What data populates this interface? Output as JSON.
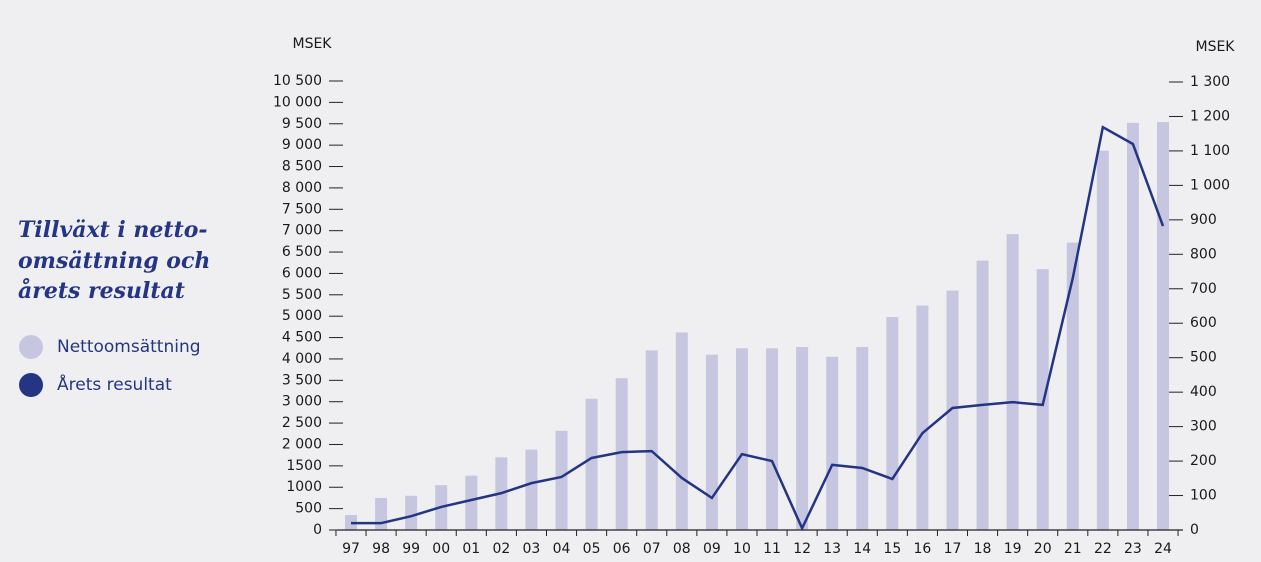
{
  "chart_data": {
    "type": "bar-line",
    "title": [
      "Tillväxt i netto-",
      "omsättning och",
      "årets resultat"
    ],
    "y_label": "MSEK",
    "y2_label": "MSEK",
    "categories": [
      "97",
      "98",
      "99",
      "00",
      "01",
      "02",
      "03",
      "04",
      "05",
      "06",
      "07",
      "08",
      "09",
      "10",
      "11",
      "12",
      "13",
      "14",
      "15",
      "16",
      "17",
      "18",
      "19",
      "20",
      "21",
      "22",
      "23",
      "24"
    ],
    "series": [
      {
        "name": "Nettoomsättning",
        "type": "bar",
        "color": "#c6c6e1",
        "values": [
          350,
          750,
          800,
          1050,
          1270,
          1700,
          1880,
          2320,
          3070,
          3550,
          4200,
          4620,
          4100,
          4250,
          4250,
          4280,
          4050,
          4280,
          4980,
          5250,
          5600,
          6300,
          6920,
          6100,
          6720,
          8870,
          9520,
          9540
        ]
      },
      {
        "name": "Årets resultat",
        "type": "line",
        "axis": "y2",
        "color": "#243584",
        "values": [
          20,
          20,
          40,
          67,
          87,
          107,
          136,
          154,
          209,
          226,
          229,
          151,
          93,
          220,
          200,
          5,
          189,
          180,
          148,
          281,
          354,
          363,
          371,
          363,
          731,
          1169,
          1120,
          882
        ]
      }
    ],
    "ylim": [
      0,
      10500
    ],
    "yticks": [
      0,
      500,
      1000,
      1500,
      {
        "value": 2000,
        "label": "2 000"
      },
      {
        "value": 2500,
        "label": "2 500"
      },
      {
        "value": 3000,
        "label": "3 000"
      },
      {
        "value": 3500,
        "label": "3 500"
      },
      {
        "value": 4000,
        "label": "4 000"
      },
      {
        "value": 4500,
        "label": "4 500"
      },
      {
        "value": 5000,
        "label": "5 000"
      },
      {
        "value": 5500,
        "label": "5 500"
      },
      {
        "value": 6000,
        "label": "6 000"
      },
      {
        "value": 6500,
        "label": "6 500"
      },
      {
        "value": 7000,
        "label": "7 000"
      },
      {
        "value": 7500,
        "label": "7 500"
      },
      {
        "value": 8000,
        "label": "8 000"
      },
      {
        "value": 8500,
        "label": "8 500"
      },
      {
        "value": 9000,
        "label": "9 000"
      },
      {
        "value": 9500,
        "label": "9 500"
      },
      {
        "value": 10000,
        "label": "10 000"
      },
      {
        "value": 10500,
        "label": "10 500"
      }
    ],
    "y2lim": [
      0,
      1300
    ],
    "y2ticks": [
      0,
      100,
      200,
      300,
      400,
      500,
      600,
      700,
      800,
      900,
      {
        "value": 1000,
        "label": "1 000"
      },
      {
        "value": 1100,
        "label": "1 100"
      },
      {
        "value": 1200,
        "label": "1 200"
      },
      {
        "value": 1300,
        "label": "1 300"
      }
    ]
  }
}
